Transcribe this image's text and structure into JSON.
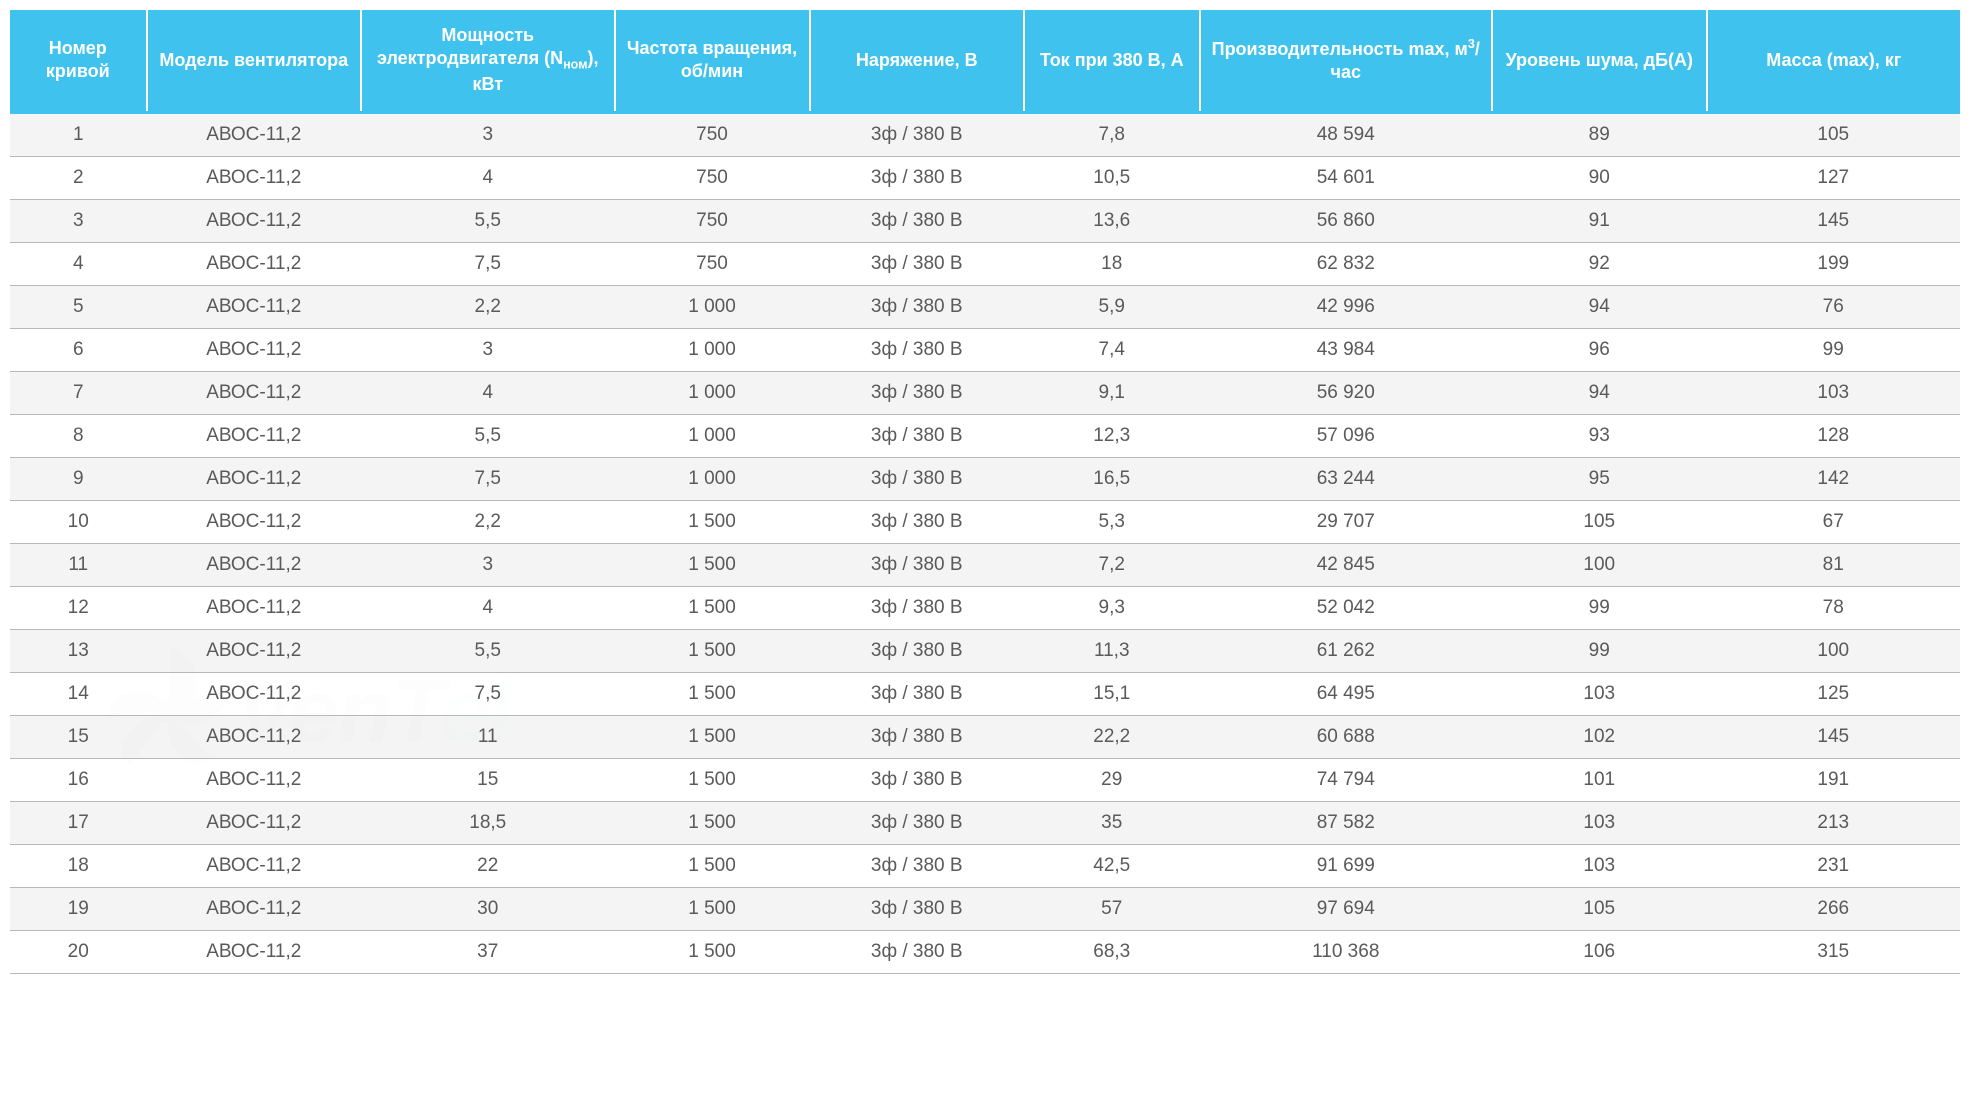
{
  "table": {
    "type": "table",
    "header_bg_color": "#3fc3ee",
    "header_text_color": "#ffffff",
    "header_fontsize": 18,
    "body_fontsize": 19,
    "body_text_color": "#5a5a5a",
    "row_odd_bg": "#f3f3f3",
    "row_even_bg": "#ffffff",
    "border_color": "#b8b8b8",
    "header_divider_color": "#ffffff",
    "header_bottom_border": "#3fc3ee",
    "columns": [
      {
        "key": "num",
        "label": "Номер кривой",
        "width": "7%"
      },
      {
        "key": "model",
        "label": "Модель вентилятора",
        "width": "11%"
      },
      {
        "key": "power",
        "label": "Мощность электродвигателя (Nном), кВт",
        "width": "13%"
      },
      {
        "key": "freq",
        "label": "Частота вращения, об/мин",
        "width": "10%"
      },
      {
        "key": "voltage",
        "label": "Наряжение, В",
        "width": "11%"
      },
      {
        "key": "current",
        "label": "Ток при 380 В, А",
        "width": "9%"
      },
      {
        "key": "perf",
        "label": "Производительность max, м³/час",
        "width": "15%"
      },
      {
        "key": "noise",
        "label": "Уровень шума, дБ(А)",
        "width": "11%"
      },
      {
        "key": "mass",
        "label": "Масса (max), кг",
        "width": "13%"
      }
    ],
    "rows": [
      {
        "num": "1",
        "model": "АВОС-11,2",
        "power": "3",
        "freq": "750",
        "voltage": "3ф / 380 В",
        "current": "7,8",
        "perf": "48 594",
        "noise": "89",
        "mass": "105"
      },
      {
        "num": "2",
        "model": "АВОС-11,2",
        "power": "4",
        "freq": "750",
        "voltage": "3ф / 380 В",
        "current": "10,5",
        "perf": "54 601",
        "noise": "90",
        "mass": "127"
      },
      {
        "num": "3",
        "model": "АВОС-11,2",
        "power": "5,5",
        "freq": "750",
        "voltage": "3ф / 380 В",
        "current": "13,6",
        "perf": "56 860",
        "noise": "91",
        "mass": "145"
      },
      {
        "num": "4",
        "model": "АВОС-11,2",
        "power": "7,5",
        "freq": "750",
        "voltage": "3ф / 380 В",
        "current": "18",
        "perf": "62 832",
        "noise": "92",
        "mass": "199"
      },
      {
        "num": "5",
        "model": "АВОС-11,2",
        "power": "2,2",
        "freq": "1 000",
        "voltage": "3ф / 380 В",
        "current": "5,9",
        "perf": "42 996",
        "noise": "94",
        "mass": "76"
      },
      {
        "num": "6",
        "model": "АВОС-11,2",
        "power": "3",
        "freq": "1 000",
        "voltage": "3ф / 380 В",
        "current": "7,4",
        "perf": "43 984",
        "noise": "96",
        "mass": "99"
      },
      {
        "num": "7",
        "model": "АВОС-11,2",
        "power": "4",
        "freq": "1 000",
        "voltage": "3ф / 380 В",
        "current": "9,1",
        "perf": "56 920",
        "noise": "94",
        "mass": "103"
      },
      {
        "num": "8",
        "model": "АВОС-11,2",
        "power": "5,5",
        "freq": "1 000",
        "voltage": "3ф / 380 В",
        "current": "12,3",
        "perf": "57 096",
        "noise": "93",
        "mass": "128"
      },
      {
        "num": "9",
        "model": "АВОС-11,2",
        "power": "7,5",
        "freq": "1 000",
        "voltage": "3ф / 380 В",
        "current": "16,5",
        "perf": "63 244",
        "noise": "95",
        "mass": "142"
      },
      {
        "num": "10",
        "model": "АВОС-11,2",
        "power": "2,2",
        "freq": "1 500",
        "voltage": "3ф / 380 В",
        "current": "5,3",
        "perf": "29 707",
        "noise": "105",
        "mass": "67"
      },
      {
        "num": "11",
        "model": "АВОС-11,2",
        "power": "3",
        "freq": "1 500",
        "voltage": "3ф / 380 В",
        "current": "7,2",
        "perf": "42 845",
        "noise": "100",
        "mass": "81"
      },
      {
        "num": "12",
        "model": "АВОС-11,2",
        "power": "4",
        "freq": "1 500",
        "voltage": "3ф / 380 В",
        "current": "9,3",
        "perf": "52 042",
        "noise": "99",
        "mass": "78"
      },
      {
        "num": "13",
        "model": "АВОС-11,2",
        "power": "5,5",
        "freq": "1 500",
        "voltage": "3ф / 380 В",
        "current": "11,3",
        "perf": "61 262",
        "noise": "99",
        "mass": "100"
      },
      {
        "num": "14",
        "model": "АВОС-11,2",
        "power": "7,5",
        "freq": "1 500",
        "voltage": "3ф / 380 В",
        "current": "15,1",
        "perf": "64 495",
        "noise": "103",
        "mass": "125"
      },
      {
        "num": "15",
        "model": "АВОС-11,2",
        "power": "11",
        "freq": "1 500",
        "voltage": "3ф / 380 В",
        "current": "22,2",
        "perf": "60 688",
        "noise": "102",
        "mass": "145"
      },
      {
        "num": "16",
        "model": "АВОС-11,2",
        "power": "15",
        "freq": "1 500",
        "voltage": "3ф / 380 В",
        "current": "29",
        "perf": "74 794",
        "noise": "101",
        "mass": "191"
      },
      {
        "num": "17",
        "model": "АВОС-11,2",
        "power": "18,5",
        "freq": "1 500",
        "voltage": "3ф / 380 В",
        "current": "35",
        "perf": "87 582",
        "noise": "103",
        "mass": "213"
      },
      {
        "num": "18",
        "model": "АВОС-11,2",
        "power": "22",
        "freq": "1 500",
        "voltage": "3ф / 380 В",
        "current": "42,5",
        "perf": "91 699",
        "noise": "103",
        "mass": "231"
      },
      {
        "num": "19",
        "model": "АВОС-11,2",
        "power": "30",
        "freq": "1 500",
        "voltage": "3ф / 380 В",
        "current": "57",
        "perf": "97 694",
        "noise": "105",
        "mass": "266"
      },
      {
        "num": "20",
        "model": "АВОС-11,2",
        "power": "37",
        "freq": "1 500",
        "voltage": "3ф / 380 В",
        "current": "68,3",
        "perf": "110 368",
        "noise": "106",
        "mass": "315"
      }
    ]
  },
  "watermark": {
    "text_part1": "VenT",
    "text_part2": "el",
    "fan_color": "#4a4a4a",
    "text_color": "#4a4a4a",
    "accent_color": "#3fc3ee",
    "opacity": 0.15
  }
}
